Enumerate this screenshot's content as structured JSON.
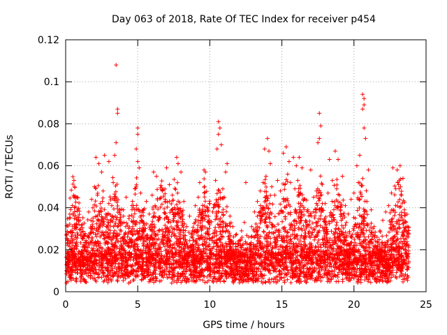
{
  "chart_data": {
    "type": "scatter",
    "title": "Day 063 of 2018, Rate Of TEC Index for receiver p454",
    "xlabel": "GPS time / hours",
    "ylabel": "ROTI / TECUs",
    "xlim": [
      0,
      25
    ],
    "ylim": [
      0,
      0.12
    ],
    "x_ticks": [
      0,
      5,
      10,
      15,
      20,
      25
    ],
    "y_ticks": [
      0,
      0.02,
      0.04,
      0.06,
      0.08,
      0.1,
      0.12
    ],
    "x_tick_labels": [
      "0",
      "5",
      "10",
      "15",
      "20",
      "25"
    ],
    "y_tick_labels": [
      "0",
      "0.02",
      "0.04",
      "0.06",
      "0.08",
      "0.1",
      "0.12"
    ],
    "grid": true,
    "marker": "+",
    "color": "#ff0000",
    "series": [
      {
        "name": "ROTI",
        "points": [
          [
            3.5,
            0.108
          ],
          [
            3.6,
            0.087
          ],
          [
            3.6,
            0.085
          ],
          [
            3.4,
            0.065
          ],
          [
            3.5,
            0.071
          ],
          [
            5.0,
            0.078
          ],
          [
            5.0,
            0.075
          ],
          [
            4.9,
            0.068
          ],
          [
            5.0,
            0.062
          ],
          [
            5.1,
            0.059
          ],
          [
            10.6,
            0.081
          ],
          [
            10.7,
            0.078
          ],
          [
            10.6,
            0.075
          ],
          [
            10.8,
            0.07
          ],
          [
            10.5,
            0.068
          ],
          [
            17.6,
            0.085
          ],
          [
            17.7,
            0.079
          ],
          [
            17.6,
            0.073
          ],
          [
            17.5,
            0.071
          ],
          [
            20.6,
            0.094
          ],
          [
            20.7,
            0.092
          ],
          [
            20.7,
            0.089
          ],
          [
            20.6,
            0.087
          ],
          [
            20.7,
            0.078
          ],
          [
            20.8,
            0.073
          ],
          [
            2.1,
            0.064
          ],
          [
            2.3,
            0.061
          ],
          [
            2.7,
            0.065
          ],
          [
            2.5,
            0.057
          ],
          [
            3.0,
            0.062
          ],
          [
            6.1,
            0.057
          ],
          [
            6.3,
            0.055
          ],
          [
            7.0,
            0.059
          ],
          [
            7.7,
            0.064
          ],
          [
            7.8,
            0.061
          ],
          [
            8.0,
            0.057
          ],
          [
            9.6,
            0.058
          ],
          [
            9.7,
            0.057
          ],
          [
            9.3,
            0.052
          ],
          [
            11.2,
            0.061
          ],
          [
            11.1,
            0.057
          ],
          [
            12.5,
            0.052
          ],
          [
            13.8,
            0.068
          ],
          [
            14.0,
            0.073
          ],
          [
            14.1,
            0.067
          ],
          [
            14.2,
            0.061
          ],
          [
            15.1,
            0.066
          ],
          [
            15.3,
            0.069
          ],
          [
            15.5,
            0.062
          ],
          [
            15.8,
            0.064
          ],
          [
            16.0,
            0.06
          ],
          [
            16.2,
            0.064
          ],
          [
            16.4,
            0.059
          ],
          [
            17.0,
            0.058
          ],
          [
            18.3,
            0.063
          ],
          [
            18.7,
            0.067
          ],
          [
            18.9,
            0.063
          ],
          [
            19.2,
            0.055
          ],
          [
            20.2,
            0.06
          ],
          [
            20.4,
            0.065
          ],
          [
            21.0,
            0.058
          ],
          [
            22.7,
            0.059
          ],
          [
            23.0,
            0.058
          ],
          [
            23.2,
            0.06
          ],
          [
            23.4,
            0.054
          ],
          [
            0.2,
            0.012
          ],
          [
            0.3,
            0.017
          ],
          [
            0.5,
            0.022
          ],
          [
            0.6,
            0.032
          ],
          [
            0.8,
            0.028
          ],
          [
            1.0,
            0.034
          ],
          [
            1.2,
            0.026
          ],
          [
            1.4,
            0.021
          ],
          [
            1.6,
            0.038
          ],
          [
            1.8,
            0.044
          ],
          [
            2.0,
            0.05
          ],
          [
            2.2,
            0.046
          ],
          [
            2.4,
            0.042
          ],
          [
            2.6,
            0.048
          ],
          [
            2.8,
            0.037
          ],
          [
            3.2,
            0.041
          ],
          [
            3.3,
            0.052
          ],
          [
            3.8,
            0.033
          ],
          [
            4.0,
            0.039
          ],
          [
            4.2,
            0.045
          ],
          [
            4.4,
            0.036
          ],
          [
            4.6,
            0.041
          ],
          [
            4.8,
            0.049
          ],
          [
            5.2,
            0.047
          ],
          [
            5.4,
            0.039
          ],
          [
            5.6,
            0.043
          ],
          [
            5.8,
            0.037
          ],
          [
            6.0,
            0.046
          ],
          [
            6.2,
            0.041
          ],
          [
            6.5,
            0.035
          ],
          [
            6.7,
            0.048
          ],
          [
            6.9,
            0.044
          ],
          [
            7.2,
            0.051
          ],
          [
            7.4,
            0.046
          ],
          [
            7.6,
            0.039
          ],
          [
            8.2,
            0.043
          ],
          [
            8.4,
            0.031
          ],
          [
            8.6,
            0.036
          ],
          [
            8.8,
            0.029
          ],
          [
            9.0,
            0.041
          ],
          [
            9.2,
            0.045
          ],
          [
            9.4,
            0.038
          ],
          [
            9.8,
            0.036
          ],
          [
            10.0,
            0.042
          ],
          [
            10.2,
            0.038
          ],
          [
            10.4,
            0.053
          ],
          [
            10.9,
            0.049
          ],
          [
            11.0,
            0.045
          ],
          [
            11.4,
            0.036
          ],
          [
            11.6,
            0.031
          ],
          [
            11.8,
            0.027
          ],
          [
            12.0,
            0.024
          ],
          [
            12.2,
            0.029
          ],
          [
            12.4,
            0.033
          ],
          [
            12.7,
            0.026
          ],
          [
            12.9,
            0.031
          ],
          [
            13.1,
            0.038
          ],
          [
            13.3,
            0.043
          ],
          [
            13.5,
            0.048
          ],
          [
            13.7,
            0.052
          ],
          [
            13.9,
            0.055
          ],
          [
            14.3,
            0.05
          ],
          [
            14.5,
            0.046
          ],
          [
            14.7,
            0.053
          ],
          [
            14.9,
            0.048
          ],
          [
            15.2,
            0.051
          ],
          [
            15.4,
            0.056
          ],
          [
            15.6,
            0.052
          ],
          [
            15.9,
            0.049
          ],
          [
            16.1,
            0.053
          ],
          [
            16.3,
            0.047
          ],
          [
            16.6,
            0.044
          ],
          [
            16.8,
            0.039
          ],
          [
            17.2,
            0.045
          ],
          [
            17.4,
            0.048
          ],
          [
            17.8,
            0.051
          ],
          [
            18.0,
            0.042
          ],
          [
            18.2,
            0.047
          ],
          [
            18.5,
            0.053
          ],
          [
            18.8,
            0.049
          ],
          [
            19.0,
            0.046
          ],
          [
            19.4,
            0.041
          ],
          [
            19.6,
            0.037
          ],
          [
            19.8,
            0.044
          ],
          [
            20.0,
            0.047
          ],
          [
            20.3,
            0.052
          ],
          [
            20.9,
            0.043
          ],
          [
            21.2,
            0.039
          ],
          [
            21.4,
            0.031
          ],
          [
            21.6,
            0.026
          ],
          [
            21.8,
            0.029
          ],
          [
            22.0,
            0.034
          ],
          [
            22.2,
            0.038
          ],
          [
            22.4,
            0.041
          ],
          [
            22.6,
            0.047
          ],
          [
            22.9,
            0.049
          ],
          [
            23.1,
            0.051
          ],
          [
            23.3,
            0.046
          ],
          [
            23.5,
            0.039
          ],
          [
            23.7,
            0.031
          ],
          [
            23.8,
            0.022
          ]
        ]
      }
    ]
  }
}
